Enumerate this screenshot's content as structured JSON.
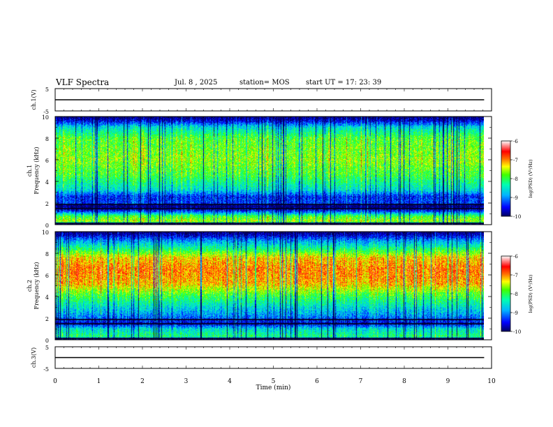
{
  "header": {
    "title": "VLF Spectra",
    "date": "Jul. 8 , 2025",
    "station": "station= MOS",
    "start": "start UT = 17: 23: 39"
  },
  "chart_data": [
    {
      "type": "line",
      "id": "ch1-waveform",
      "ylabel": "ch.1(V)",
      "yticks": [
        "5",
        "-5"
      ],
      "ylim": [
        -5,
        5
      ],
      "x": [
        0,
        9.83
      ],
      "values": [
        0.0,
        0.0
      ],
      "xlim": [
        0,
        10
      ]
    },
    {
      "type": "heatmap",
      "id": "ch1-spectrogram",
      "ylabel_line1": "ch.1",
      "ylabel_line2": "Frequency (kHz)",
      "yticks": [
        "0",
        "2",
        "4",
        "6",
        "8",
        "10"
      ],
      "ylim": [
        0,
        10
      ],
      "xlim": [
        0,
        10
      ],
      "x_data_end": 9.83,
      "freq_profile_logpsd": [
        {
          "f": 0.0,
          "v": -10.0
        },
        {
          "f": 0.3,
          "v": -7.6
        },
        {
          "f": 0.8,
          "v": -8.0
        },
        {
          "f": 1.3,
          "v": -9.5
        },
        {
          "f": 1.7,
          "v": -10.0
        },
        {
          "f": 2.0,
          "v": -9.3
        },
        {
          "f": 2.6,
          "v": -9.4
        },
        {
          "f": 3.2,
          "v": -8.6
        },
        {
          "f": 4.5,
          "v": -8.0
        },
        {
          "f": 6.0,
          "v": -7.7
        },
        {
          "f": 8.0,
          "v": -7.9
        },
        {
          "f": 9.0,
          "v": -8.6
        },
        {
          "f": 9.6,
          "v": -9.6
        },
        {
          "f": 10.0,
          "v": -10.0
        }
      ],
      "colorbar": {
        "label": "log(PSD) (V²/Hz)",
        "ticks": [
          "-6",
          "-7",
          "-8",
          "-9",
          "-10"
        ],
        "range": [
          -10,
          -6
        ]
      }
    },
    {
      "type": "heatmap",
      "id": "ch2-spectrogram",
      "ylabel_line1": "ch.2",
      "ylabel_line2": "Frequency (kHz)",
      "yticks": [
        "0",
        "2",
        "4",
        "6",
        "8",
        "10"
      ],
      "ylim": [
        0,
        10
      ],
      "xlim": [
        0,
        10
      ],
      "x_data_end": 9.83,
      "freq_profile_logpsd": [
        {
          "f": 0.0,
          "v": -10.0
        },
        {
          "f": 0.3,
          "v": -8.2
        },
        {
          "f": 1.0,
          "v": -8.6
        },
        {
          "f": 1.5,
          "v": -9.6
        },
        {
          "f": 2.2,
          "v": -9.0
        },
        {
          "f": 3.0,
          "v": -8.6
        },
        {
          "f": 4.2,
          "v": -7.9
        },
        {
          "f": 5.2,
          "v": -7.2
        },
        {
          "f": 6.5,
          "v": -7.0
        },
        {
          "f": 7.6,
          "v": -7.3
        },
        {
          "f": 8.4,
          "v": -8.2
        },
        {
          "f": 9.2,
          "v": -9.0
        },
        {
          "f": 9.7,
          "v": -9.7
        },
        {
          "f": 10.0,
          "v": -10.0
        }
      ],
      "colorbar": {
        "label": "log(PSD) (V²/Hz)",
        "ticks": [
          "-6",
          "-7",
          "-8",
          "-9",
          "-10"
        ],
        "range": [
          -10,
          -6
        ]
      }
    },
    {
      "type": "line",
      "id": "ch3-waveform",
      "ylabel": "ch.3(V)",
      "yticks": [
        "5",
        "-5"
      ],
      "ylim": [
        -5,
        5
      ],
      "x": [
        0,
        9.83
      ],
      "values": [
        0.0,
        0.0
      ],
      "xlim": [
        0,
        10
      ],
      "xlabel": "Time (min)",
      "xticks": [
        "0",
        "1",
        "2",
        "3",
        "4",
        "5",
        "6",
        "7",
        "8",
        "9",
        "10"
      ]
    }
  ]
}
